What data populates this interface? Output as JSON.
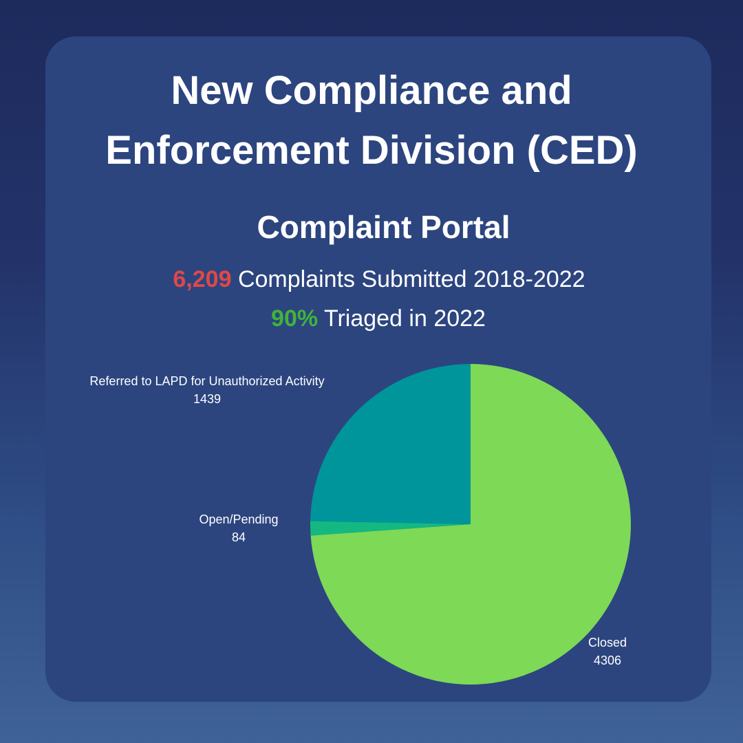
{
  "header": {
    "title_line1": "New Compliance and",
    "title_line2": "Enforcement Division (CED)",
    "subtitle": "Complaint Portal"
  },
  "stats": {
    "submitted_number": "6,209",
    "submitted_text": " Complaints Submitted 2018-2022",
    "triaged_number": "90%",
    "triaged_text": " Triaged in 2022"
  },
  "colors": {
    "background_top": "#1d2a5c",
    "card": "#2c457f",
    "highlight_red": "#e04848",
    "highlight_green": "#3fb43a"
  },
  "chart_data": {
    "type": "pie",
    "title": "",
    "slices": [
      {
        "label": "Closed",
        "value": 4306,
        "color": "#7ed957"
      },
      {
        "label": "Open/Pending",
        "value": 84,
        "color": "#14b881"
      },
      {
        "label": "Referred to LAPD for Unauthorized Activity",
        "value": 1439,
        "color": "#00959a"
      }
    ],
    "start": "12 o'clock",
    "direction": "clockwise",
    "labels": "outside, name above value"
  }
}
